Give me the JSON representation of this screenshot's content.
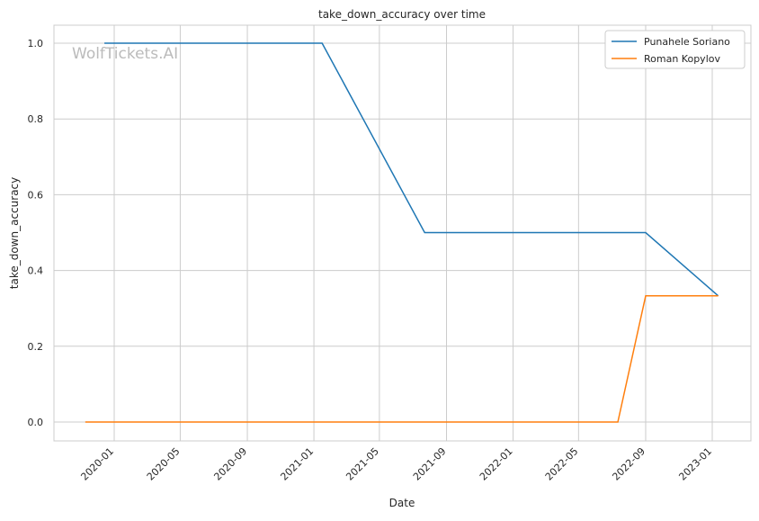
{
  "chart_data": {
    "type": "line",
    "title": "take_down_accuracy over time",
    "xlabel": "Date",
    "ylabel": "take_down_accuracy",
    "watermark": "WolfTickets.AI",
    "x_ticks": [
      "2020-01",
      "2020-05",
      "2020-09",
      "2021-01",
      "2021-05",
      "2021-09",
      "2022-01",
      "2022-05",
      "2022-09",
      "2023-01"
    ],
    "y_ticks": [
      0.0,
      0.2,
      0.4,
      0.6,
      0.8,
      1.0
    ],
    "ylim": [
      -0.05,
      1.05
    ],
    "xlim": [
      "2019-10-27",
      "2023-02-22"
    ],
    "grid": true,
    "legend_position": "top-right",
    "series": [
      {
        "name": "Punahele Soriano",
        "color": "#1f77b4",
        "x": [
          "2019-12-14",
          "2021-01-16",
          "2021-07-23",
          "2022-09-01",
          "2023-01-12"
        ],
        "y": [
          1.0,
          1.0,
          0.5,
          0.5,
          0.333
        ]
      },
      {
        "name": "Roman Kopylov",
        "color": "#ff7f0e",
        "x": [
          "2019-11-09",
          "2022-07-12",
          "2022-09-01",
          "2023-01-12"
        ],
        "y": [
          0.0,
          0.0,
          0.333,
          0.333
        ]
      }
    ]
  }
}
